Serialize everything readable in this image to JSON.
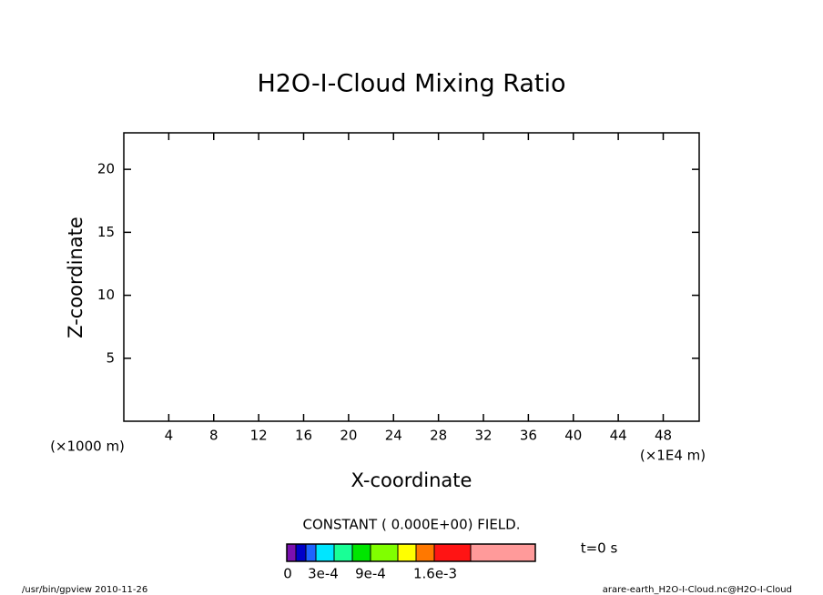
{
  "chart_data": {
    "type": "empty",
    "title": "H2O-I-Cloud Mixing Ratio",
    "x_label": "X-coordinate",
    "y_label": "Z-coordinate",
    "x_unit": "(×1E4 m)",
    "y_unit": "(×1000 m)",
    "xlim": [
      0,
      51.2
    ],
    "xticks": [
      4,
      8,
      12,
      16,
      20,
      24,
      28,
      32,
      36,
      40,
      44,
      48
    ],
    "ylim": [
      0,
      22.9
    ],
    "yticks": [
      5,
      10,
      15,
      20
    ],
    "note": "CONSTANT ( 0.000E+00) FIELD.",
    "time": "t=0 s",
    "colorbar": {
      "colors": [
        "#7a10b0",
        "#0000c8",
        "#1e64ff",
        "#00e6ff",
        "#19ff96",
        "#00e600",
        "#80ff00",
        "#ffff00",
        "#ff7800",
        "#ff1414",
        "#ff9a9a"
      ],
      "labels": [
        "0",
        "3e-4",
        "9e-4",
        "1.6e-3"
      ]
    },
    "footer_left": "/usr/bin/gpview  2010-11-26",
    "footer_right": "arare-earth_H2O-I-Cloud.nc@H2O-I-Cloud"
  }
}
